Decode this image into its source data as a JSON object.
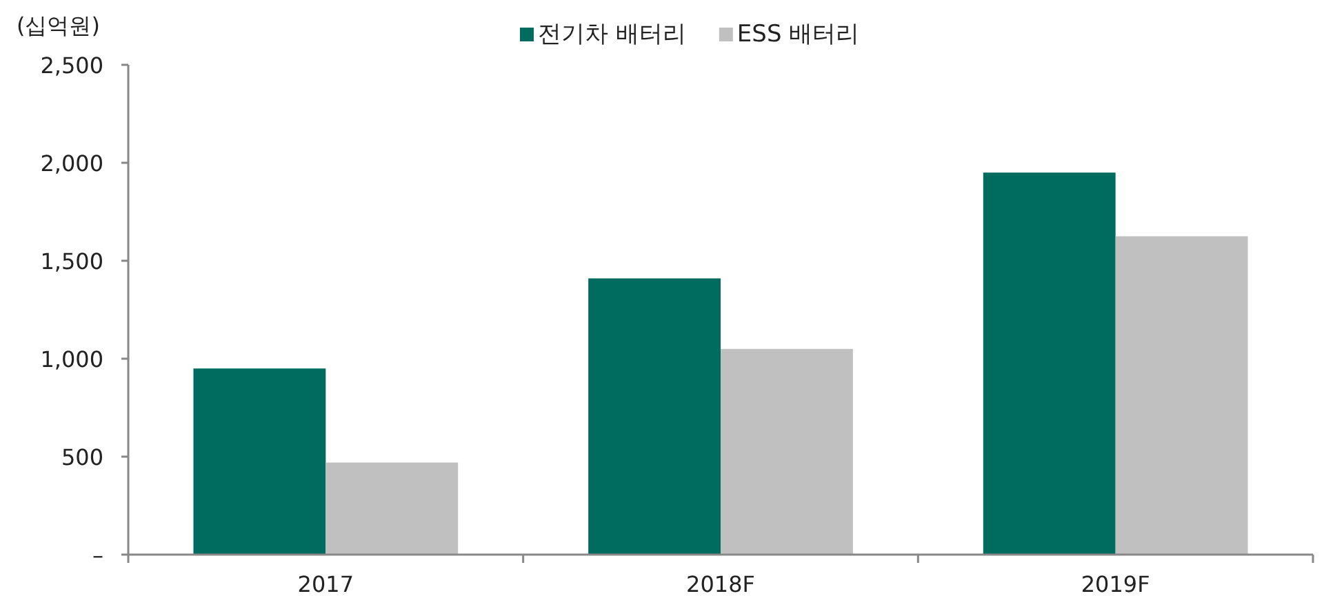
{
  "chart_data": {
    "type": "bar",
    "ylabel": "(십억원)",
    "legend": "top",
    "categories": [
      "2017",
      "2018F",
      "2019F"
    ],
    "series": [
      {
        "name": "전기차 배터리",
        "color": "#006b5f",
        "values": [
          950,
          1410,
          1950
        ]
      },
      {
        "name": "ESS 배터리",
        "color": "#c0c0c0",
        "values": [
          470,
          1050,
          1625
        ]
      }
    ],
    "ylim": [
      0,
      2500
    ],
    "yticks": [
      {
        "value": 0,
        "label": "–"
      },
      500,
      {
        "value": 1000,
        "label": "1,000"
      },
      {
        "value": 1500,
        "label": "1,500"
      },
      {
        "value": 2000,
        "label": "2,000"
      },
      {
        "value": 2500,
        "label": "2,500"
      }
    ]
  }
}
